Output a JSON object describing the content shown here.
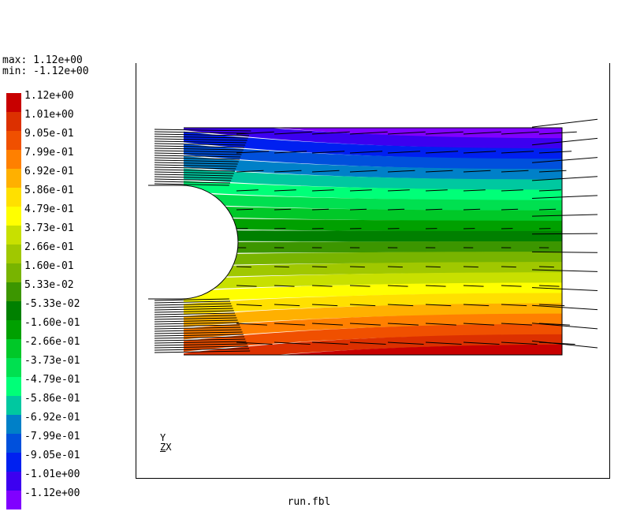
{
  "header": {
    "max_label": "max: 1.12e+00",
    "min_label": "min: -1.12e+00"
  },
  "footer": {
    "filename": "run.fbl"
  },
  "axes_triad": {
    "y": "Y",
    "z": "Z",
    "x": "X"
  },
  "chart_data": {
    "type": "heatmap",
    "title": "",
    "xlabel": "",
    "ylabel": "",
    "value_range": [
      -1.12,
      1.12
    ],
    "legend": {
      "placement": "left",
      "entries": [
        {
          "label": "1.12e+00",
          "color": "#c80000"
        },
        {
          "label": "1.01e+00",
          "color": "#dc3000"
        },
        {
          "label": "9.05e-01",
          "color": "#f05000"
        },
        {
          "label": "7.99e-01",
          "color": "#ff8000"
        },
        {
          "label": "6.92e-01",
          "color": "#ffb000"
        },
        {
          "label": "5.86e-01",
          "color": "#ffe000"
        },
        {
          "label": "4.79e-01",
          "color": "#ffff00"
        },
        {
          "label": "3.73e-01",
          "color": "#c8e000"
        },
        {
          "label": "2.66e-01",
          "color": "#a0c800"
        },
        {
          "label": "1.60e-01",
          "color": "#78b400"
        },
        {
          "label": "5.33e-02",
          "color": "#3c9600"
        },
        {
          "label": "-5.33e-02",
          "color": "#008000"
        },
        {
          "label": "-1.60e-01",
          "color": "#00a000"
        },
        {
          "label": "-2.66e-01",
          "color": "#00c828"
        },
        {
          "label": "-3.73e-01",
          "color": "#00e050"
        },
        {
          "label": "-4.79e-01",
          "color": "#00ff78"
        },
        {
          "label": "-5.86e-01",
          "color": "#00c8a0"
        },
        {
          "label": "-6.92e-01",
          "color": "#0080c8"
        },
        {
          "label": "-7.99e-01",
          "color": "#0050dc"
        },
        {
          "label": "-9.05e-01",
          "color": "#0020f0"
        },
        {
          "label": "-1.01e+00",
          "color": "#3c00f0"
        },
        {
          "label": "-1.12e+00",
          "color": "#8000ff"
        }
      ]
    },
    "bands": [
      {
        "value": -1.12,
        "color": "#8000ff"
      },
      {
        "value": -1.01,
        "color": "#3c00f0"
      },
      {
        "value": -0.905,
        "color": "#0020f0"
      },
      {
        "value": -0.799,
        "color": "#0050dc"
      },
      {
        "value": -0.692,
        "color": "#0080c8"
      },
      {
        "value": -0.586,
        "color": "#00c8a0"
      },
      {
        "value": -0.479,
        "color": "#00ff78"
      },
      {
        "value": -0.373,
        "color": "#00e050"
      },
      {
        "value": -0.266,
        "color": "#00c828"
      },
      {
        "value": -0.16,
        "color": "#00a000"
      },
      {
        "value": -0.0533,
        "color": "#008000"
      },
      {
        "value": 0.0533,
        "color": "#3c9600"
      },
      {
        "value": 0.16,
        "color": "#78b400"
      },
      {
        "value": 0.266,
        "color": "#a0c800"
      },
      {
        "value": 0.373,
        "color": "#c8e000"
      },
      {
        "value": 0.479,
        "color": "#ffff00"
      },
      {
        "value": 0.586,
        "color": "#ffe000"
      },
      {
        "value": 0.692,
        "color": "#ffb000"
      },
      {
        "value": 0.799,
        "color": "#ff8000"
      },
      {
        "value": 0.905,
        "color": "#f05000"
      },
      {
        "value": 1.01,
        "color": "#dc3000"
      },
      {
        "value": 1.12,
        "color": "#c80000"
      }
    ],
    "grid": false
  }
}
